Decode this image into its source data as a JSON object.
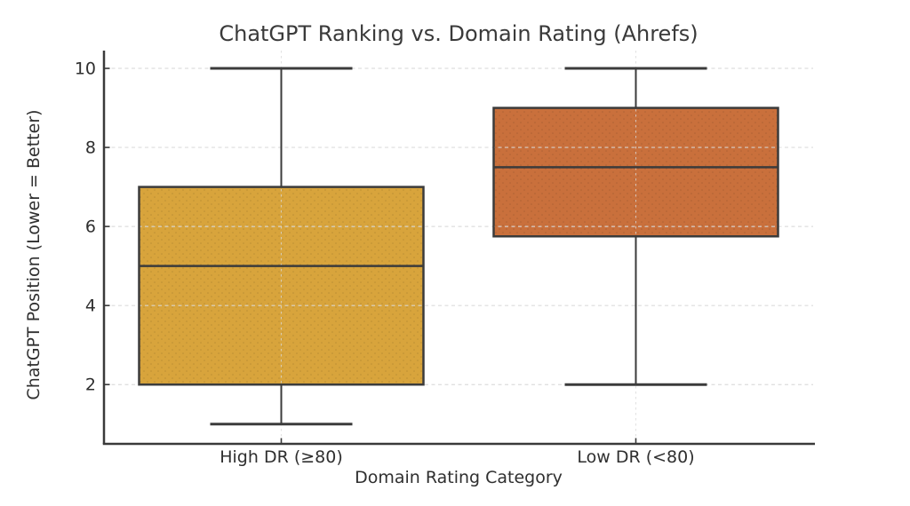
{
  "chart_data": {
    "type": "box",
    "title": "ChatGPT Ranking vs. Domain Rating (Ahrefs)",
    "xlabel": "Domain Rating Category",
    "ylabel": "ChatGPT Position (Lower = Better)",
    "categories": [
      "High DR (≥80)",
      "Low DR (<80)"
    ],
    "yticks": [
      2,
      4,
      6,
      8,
      10
    ],
    "ylim": [
      0.5,
      10.45
    ],
    "grid": "dashed horizontal gridlines at yticks and dashed vertical gridlines at category centers",
    "legend": "none",
    "series": [
      {
        "name": "High DR (≥80)",
        "whisker_low": 1,
        "q1": 2,
        "median": 5,
        "q3": 7,
        "whisker_high": 10,
        "fill_color": "#D8A43C"
      },
      {
        "name": "Low DR (<80)",
        "whisker_low": 2,
        "q1": 5.75,
        "median": 7.5,
        "q3": 9,
        "whisker_high": 10,
        "fill_color": "#C9703C"
      }
    ],
    "colors": {
      "box_edge": "#3B3B3B",
      "whisker": "#3B3B3B",
      "grid": "#D9D9D9",
      "tick_text": "#2F2F2F",
      "title_text": "#3A3A3A",
      "spine": "#3A3A3A"
    }
  }
}
